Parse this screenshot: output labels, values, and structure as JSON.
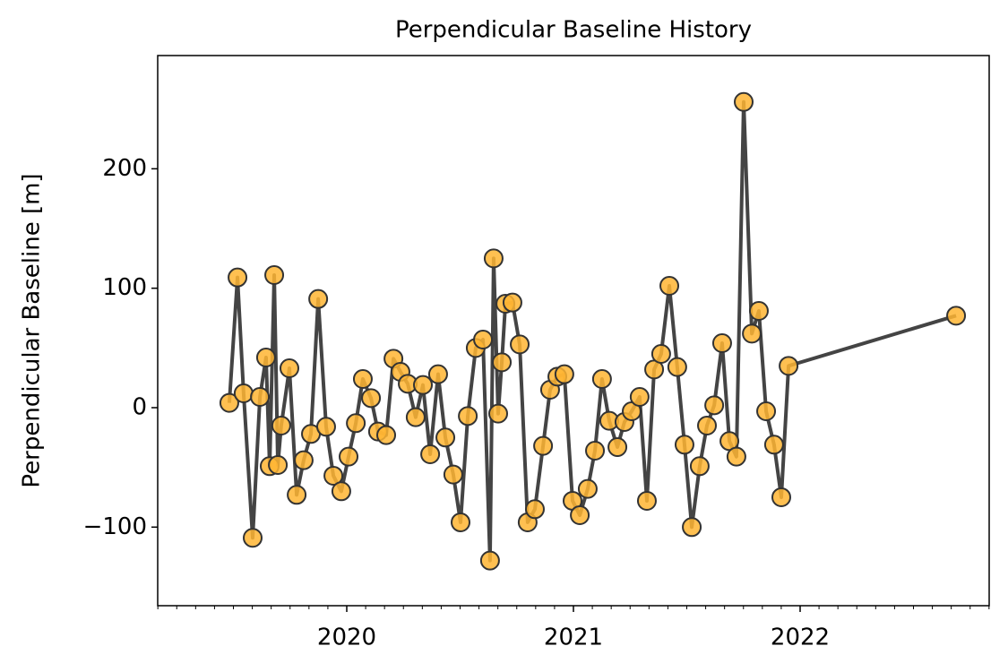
{
  "chart_data": {
    "type": "line",
    "title": "Perpendicular Baseline History",
    "ylabel": "Perpendicular Baseline [m]",
    "x": [
      2019.482,
      2019.518,
      2019.545,
      2019.585,
      2019.617,
      2019.644,
      2019.66,
      2019.68,
      2019.696,
      2019.711,
      2019.747,
      2019.779,
      2019.81,
      2019.842,
      2019.874,
      2019.909,
      2019.941,
      2019.976,
      2020.008,
      2020.04,
      2020.071,
      2020.107,
      2020.138,
      2020.174,
      2020.206,
      2020.237,
      2020.269,
      2020.304,
      2020.336,
      2020.368,
      2020.403,
      2020.435,
      2020.47,
      2020.502,
      2020.534,
      2020.569,
      2020.601,
      2020.632,
      2020.648,
      2020.668,
      2020.684,
      2020.7,
      2020.731,
      2020.763,
      2020.798,
      2020.83,
      2020.866,
      2020.897,
      2020.929,
      2020.96,
      2020.996,
      2021.028,
      2021.063,
      2021.095,
      2021.126,
      2021.158,
      2021.194,
      2021.225,
      2021.257,
      2021.292,
      2021.324,
      2021.356,
      2021.387,
      2021.423,
      2021.458,
      2021.49,
      2021.522,
      2021.557,
      2021.589,
      2021.621,
      2021.656,
      2021.688,
      2021.719,
      2021.751,
      2021.787,
      2021.818,
      2021.85,
      2021.885,
      2021.917,
      2021.949,
      2022.688
    ],
    "values": [
      4,
      109,
      12,
      -109,
      9,
      42,
      -49,
      111,
      -48,
      -15,
      33,
      -73,
      -44,
      -22,
      91,
      -16,
      -57,
      -70,
      -41,
      -13,
      24,
      8,
      -20,
      -23,
      41,
      30,
      20,
      -8,
      19,
      -39,
      28,
      -25,
      -56,
      -96,
      -7,
      50,
      57,
      -128,
      125,
      -5,
      38,
      87,
      88,
      53,
      -96,
      -85,
      -32,
      15,
      26,
      28,
      -78,
      -90,
      -68,
      -36,
      24,
      -11,
      -33,
      -12,
      -3,
      9,
      -78,
      32,
      45,
      102,
      34,
      -31,
      -100,
      -49,
      -15,
      2,
      54,
      -28,
      -41,
      256,
      62,
      81,
      -3,
      -31,
      -75,
      35,
      77
    ],
    "line_color": "#444444",
    "marker_color": "#ffb533",
    "xlim": [
      2019.166,
      2022.834
    ],
    "xticks": [
      2020,
      2021,
      2022
    ],
    "ylim": [
      -165.8,
      294.8
    ],
    "yticks": [
      {
        "value": -100,
        "label": "−100"
      },
      0,
      100,
      200
    ]
  }
}
